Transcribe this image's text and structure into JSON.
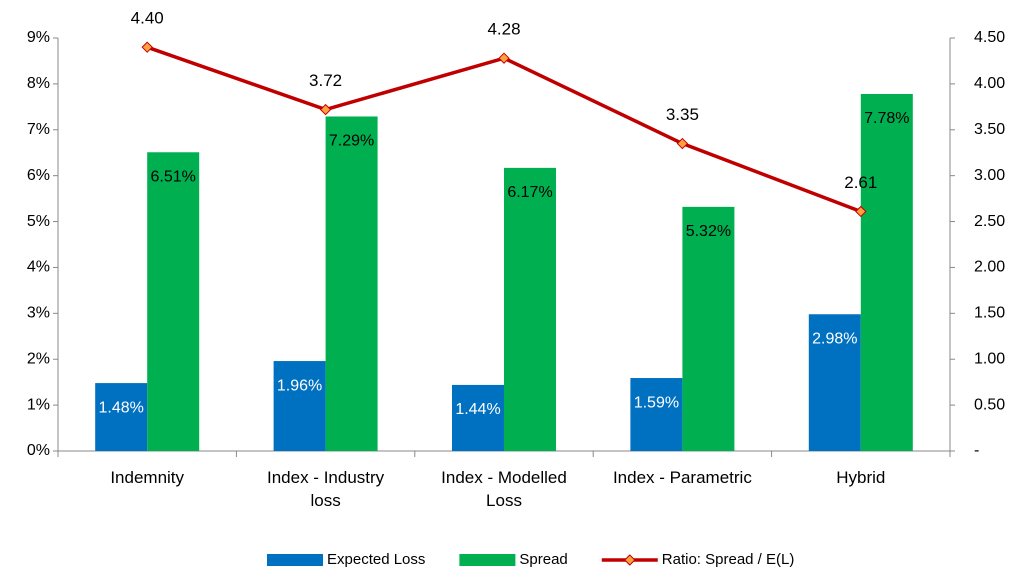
{
  "chart_data": {
    "type": "bar",
    "categories": [
      "Indemnity",
      "Index - Industry loss",
      "Index - Modelled Loss",
      "Index - Parametric",
      "Hybrid"
    ],
    "series": [
      {
        "name": "Expected Loss",
        "color": "#0070c0",
        "values": [
          1.48,
          1.96,
          1.44,
          1.59,
          2.98
        ],
        "value_labels": [
          "1.48%",
          "1.96%",
          "1.44%",
          "1.59%",
          "2.98%"
        ]
      },
      {
        "name": "Spread",
        "color": "#00b050",
        "values": [
          6.51,
          7.29,
          6.17,
          5.32,
          7.78
        ],
        "value_labels": [
          "6.51%",
          "7.29%",
          "6.17%",
          "5.32%",
          "7.78%"
        ]
      },
      {
        "name": "Ratio: Spread / E(L)",
        "type": "line",
        "axis": "y2",
        "color": "#c00000",
        "marker_color": "#ffa040",
        "values": [
          4.4,
          3.72,
          4.28,
          3.35,
          2.61
        ],
        "value_labels": [
          "4.40",
          "3.72",
          "4.28",
          "3.35",
          "2.61"
        ]
      }
    ],
    "ylim": [
      0,
      9
    ],
    "yticks": [
      {
        "value": 0,
        "label": "0%"
      },
      {
        "value": 1,
        "label": "1%"
      },
      {
        "value": 2,
        "label": "2%"
      },
      {
        "value": 3,
        "label": "3%"
      },
      {
        "value": 4,
        "label": "4%"
      },
      {
        "value": 5,
        "label": "5%"
      },
      {
        "value": 6,
        "label": "6%"
      },
      {
        "value": 7,
        "label": "7%"
      },
      {
        "value": 8,
        "label": "8%"
      },
      {
        "value": 9,
        "label": "9%"
      }
    ],
    "y2lim": [
      0,
      4.5
    ],
    "y2ticks": [
      {
        "value": 0,
        "label": "-"
      },
      {
        "value": 0.5,
        "label": "0.50"
      },
      {
        "value": 1,
        "label": "1.00"
      },
      {
        "value": 1.5,
        "label": "1.50"
      },
      {
        "value": 2,
        "label": "2.00"
      },
      {
        "value": 2.5,
        "label": "2.50"
      },
      {
        "value": 3,
        "label": "3.00"
      },
      {
        "value": 3.5,
        "label": "3.50"
      },
      {
        "value": 4,
        "label": "4.00"
      },
      {
        "value": 4.5,
        "label": "4.50"
      }
    ],
    "grid": false,
    "legend": "bottom"
  }
}
